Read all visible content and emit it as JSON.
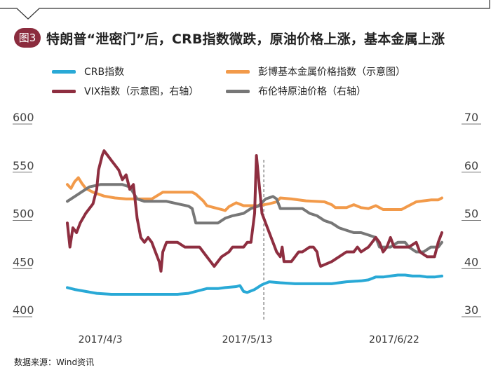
{
  "figure": {
    "badge": "图3",
    "title": "特朗普“泄密门”后，CRB指数微跌，原油价格上涨，基本金属上涨",
    "source": "数据来源：Wind资讯"
  },
  "chart_data": {
    "type": "line",
    "title": "特朗普“泄密门”后，CRB指数微跌，原油价格上涨，基本金属上涨",
    "x_ticks": [
      "2017/4/3",
      "2017/5/13",
      "2017/6/22"
    ],
    "x_tick_days": [
      4,
      44,
      84
    ],
    "x_range_days": [
      0,
      96
    ],
    "vline_day": 44,
    "y_left": {
      "min": 400,
      "max": 600,
      "ticks": [
        400,
        450,
        500,
        550,
        600
      ]
    },
    "y_right": {
      "min": 30,
      "max": 70,
      "ticks": [
        30,
        40,
        50,
        60,
        70
      ]
    },
    "grid": false,
    "legend_position": "top",
    "series": [
      {
        "name": "CRB指数",
        "axis": "left",
        "color": "#29a9d6",
        "points": [
          [
            0,
            423
          ],
          [
            2,
            421
          ],
          [
            5,
            419
          ],
          [
            8,
            417
          ],
          [
            12,
            416
          ],
          [
            16,
            416
          ],
          [
            20,
            416
          ],
          [
            25,
            416
          ],
          [
            30,
            416
          ],
          [
            33,
            417
          ],
          [
            36,
            420
          ],
          [
            38,
            422
          ],
          [
            41,
            422
          ],
          [
            43,
            423
          ],
          [
            46,
            424
          ],
          [
            47,
            425
          ],
          [
            48,
            419
          ],
          [
            49,
            418
          ],
          [
            51,
            421
          ],
          [
            53,
            426
          ],
          [
            55,
            429
          ],
          [
            58,
            428
          ],
          [
            62,
            427
          ],
          [
            66,
            427
          ],
          [
            70,
            427
          ],
          [
            72,
            427
          ],
          [
            74,
            428
          ],
          [
            76,
            429
          ],
          [
            80,
            430
          ],
          [
            82,
            431
          ],
          [
            84,
            434
          ],
          [
            86,
            434
          ],
          [
            88,
            435
          ],
          [
            90,
            436
          ],
          [
            92,
            436
          ],
          [
            94,
            435
          ],
          [
            96,
            435
          ],
          [
            98,
            434
          ],
          [
            100,
            434
          ],
          [
            102,
            435
          ]
        ]
      },
      {
        "name": "彭博基本金属价格指数（示意图）",
        "axis": "left",
        "color": "#f29a4a",
        "points": [
          [
            0,
            530
          ],
          [
            1,
            526
          ],
          [
            2,
            533
          ],
          [
            3,
            537
          ],
          [
            4,
            531
          ],
          [
            5,
            526
          ],
          [
            7,
            522
          ],
          [
            10,
            518
          ],
          [
            13,
            516
          ],
          [
            16,
            515
          ],
          [
            20,
            515
          ],
          [
            23,
            515
          ],
          [
            26,
            522
          ],
          [
            30,
            522
          ],
          [
            33,
            522
          ],
          [
            34,
            522
          ],
          [
            35,
            520
          ],
          [
            37,
            513
          ],
          [
            38,
            508
          ],
          [
            40,
            506
          ],
          [
            42,
            504
          ],
          [
            43,
            503
          ],
          [
            44,
            507
          ],
          [
            46,
            511
          ],
          [
            48,
            508
          ],
          [
            50,
            508
          ],
          [
            52,
            508
          ],
          [
            55,
            510
          ],
          [
            57,
            512
          ],
          [
            58,
            516
          ],
          [
            61,
            515
          ],
          [
            65,
            513
          ],
          [
            70,
            512
          ],
          [
            72,
            509
          ],
          [
            73,
            506
          ],
          [
            76,
            506
          ],
          [
            78,
            509
          ],
          [
            80,
            506
          ],
          [
            82,
            505
          ],
          [
            84,
            508
          ],
          [
            86,
            504
          ],
          [
            88,
            504
          ],
          [
            91,
            504
          ],
          [
            93,
            508
          ],
          [
            95,
            512
          ],
          [
            97,
            513
          ],
          [
            99,
            514
          ],
          [
            101,
            514
          ],
          [
            102,
            516
          ]
        ]
      },
      {
        "name": "VIX指数（示意图，右轴）",
        "axis": "right",
        "color": "#8e2e40",
        "points": [
          [
            0,
            48
          ],
          [
            0.7,
            43
          ],
          [
            1.5,
            47
          ],
          [
            2.5,
            46
          ],
          [
            3.5,
            48
          ],
          [
            5,
            50
          ],
          [
            7,
            52
          ],
          [
            8,
            55
          ],
          [
            8.5,
            59
          ],
          [
            9.5,
            62
          ],
          [
            10,
            63
          ],
          [
            11,
            62
          ],
          [
            12,
            61
          ],
          [
            13,
            60
          ],
          [
            14,
            59
          ],
          [
            15,
            57
          ],
          [
            16,
            58
          ],
          [
            17,
            55
          ],
          [
            18,
            56
          ],
          [
            19,
            49
          ],
          [
            20,
            45
          ],
          [
            21,
            44
          ],
          [
            22,
            45
          ],
          [
            23,
            44
          ],
          [
            24,
            42
          ],
          [
            25,
            40
          ],
          [
            25.5,
            38
          ],
          [
            26,
            42
          ],
          [
            27,
            44
          ],
          [
            28,
            44
          ],
          [
            30,
            44
          ],
          [
            32,
            43
          ],
          [
            34,
            43
          ],
          [
            36,
            43
          ],
          [
            37,
            42
          ],
          [
            39,
            40
          ],
          [
            40,
            39
          ],
          [
            42,
            41
          ],
          [
            44,
            42
          ],
          [
            45,
            43
          ],
          [
            47,
            43
          ],
          [
            48,
            43
          ],
          [
            49,
            44
          ],
          [
            50,
            44
          ],
          [
            51,
            50
          ],
          [
            51.5,
            62
          ],
          [
            52,
            58
          ],
          [
            53,
            50
          ],
          [
            54,
            48
          ],
          [
            55,
            46
          ],
          [
            56,
            44
          ],
          [
            57,
            42
          ],
          [
            58,
            41
          ],
          [
            58.5,
            43
          ],
          [
            59,
            40
          ],
          [
            61,
            40
          ],
          [
            63,
            42
          ],
          [
            64,
            42
          ],
          [
            66,
            43
          ],
          [
            67,
            43
          ],
          [
            68,
            42
          ],
          [
            68.5,
            40
          ],
          [
            69,
            39
          ],
          [
            72,
            40
          ],
          [
            74,
            41
          ],
          [
            76,
            42
          ],
          [
            78,
            42
          ],
          [
            79,
            43
          ],
          [
            80,
            42
          ],
          [
            82,
            43
          ],
          [
            83,
            44
          ],
          [
            84,
            45
          ],
          [
            85,
            44
          ],
          [
            86,
            42
          ],
          [
            87,
            43
          ],
          [
            88,
            45
          ],
          [
            89,
            43
          ],
          [
            91,
            43
          ],
          [
            93,
            43
          ],
          [
            95,
            44
          ],
          [
            96,
            42
          ],
          [
            98,
            41
          ],
          [
            99,
            41
          ],
          [
            100,
            41
          ],
          [
            101,
            44
          ],
          [
            102,
            46
          ]
        ]
      },
      {
        "name": "布伦特原油价格（右轴）",
        "axis": "right",
        "color": "#777777",
        "points": [
          [
            0,
            52.5
          ],
          [
            2,
            53.5
          ],
          [
            4,
            54.5
          ],
          [
            6,
            55.5
          ],
          [
            9,
            56
          ],
          [
            12,
            56
          ],
          [
            15,
            56
          ],
          [
            17,
            55.5
          ],
          [
            19,
            53
          ],
          [
            21,
            52.5
          ],
          [
            24,
            52.5
          ],
          [
            27,
            52.5
          ],
          [
            30,
            52
          ],
          [
            33,
            51.5
          ],
          [
            34,
            51
          ],
          [
            35,
            48
          ],
          [
            37,
            48
          ],
          [
            39,
            48
          ],
          [
            41,
            48
          ],
          [
            43,
            49
          ],
          [
            45,
            49.5
          ],
          [
            48,
            50
          ],
          [
            50,
            51
          ],
          [
            52,
            51.5
          ],
          [
            54,
            53
          ],
          [
            56,
            53.5
          ],
          [
            57,
            53
          ],
          [
            58,
            51
          ],
          [
            60,
            51
          ],
          [
            62,
            51
          ],
          [
            64,
            51
          ],
          [
            66,
            50
          ],
          [
            68,
            49.5
          ],
          [
            70,
            48.5
          ],
          [
            72,
            48
          ],
          [
            74,
            47
          ],
          [
            76,
            46.5
          ],
          [
            78,
            46
          ],
          [
            80,
            46
          ],
          [
            82,
            45.5
          ],
          [
            84,
            45
          ],
          [
            85,
            43
          ],
          [
            86,
            43
          ],
          [
            88,
            43
          ],
          [
            90,
            44
          ],
          [
            92,
            44
          ],
          [
            93,
            43
          ],
          [
            95,
            42
          ],
          [
            97,
            42
          ],
          [
            99,
            43
          ],
          [
            101,
            43
          ],
          [
            102,
            44
          ]
        ]
      }
    ]
  }
}
